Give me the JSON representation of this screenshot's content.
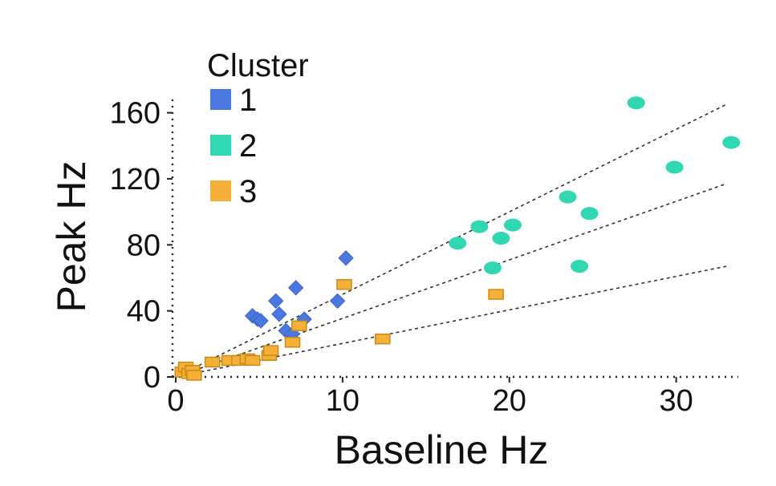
{
  "chart_data": {
    "type": "scatter",
    "xlabel": "Baseline Hz",
    "ylabel": "Peak Hz",
    "xlim": [
      0,
      33
    ],
    "ylim": [
      0,
      170
    ],
    "xticks": [
      "0",
      "10",
      "20",
      "30"
    ],
    "yticks": [
      "0",
      "40",
      "80",
      "120",
      "160"
    ],
    "grid": false,
    "legend": {
      "title": "Cluster",
      "placement": "top-left"
    },
    "series": [
      {
        "name": "1",
        "color": "#4a78e0",
        "marker": "diamond",
        "points": [
          [
            4.6,
            37
          ],
          [
            4.9,
            35
          ],
          [
            5.1,
            34
          ],
          [
            6.0,
            46
          ],
          [
            6.2,
            38
          ],
          [
            6.6,
            28
          ],
          [
            7.0,
            26
          ],
          [
            7.2,
            54
          ],
          [
            7.7,
            35
          ],
          [
            9.7,
            46
          ],
          [
            10.2,
            72
          ]
        ]
      },
      {
        "name": "2",
        "color": "#2fd8b0",
        "marker": "ellipse",
        "points": [
          [
            16.9,
            81
          ],
          [
            18.2,
            91
          ],
          [
            19.0,
            66
          ],
          [
            19.5,
            84
          ],
          [
            20.2,
            92
          ],
          [
            23.5,
            109
          ],
          [
            24.2,
            67
          ],
          [
            24.8,
            99
          ],
          [
            27.6,
            166
          ],
          [
            29.9,
            127
          ],
          [
            33.3,
            142
          ]
        ]
      },
      {
        "name": "3",
        "color": "#f5b03a",
        "marker": "square",
        "points": [
          [
            0.4,
            3
          ],
          [
            0.6,
            6
          ],
          [
            0.8,
            2
          ],
          [
            1.0,
            4
          ],
          [
            1.1,
            1
          ],
          [
            2.2,
            9
          ],
          [
            3.2,
            10
          ],
          [
            3.8,
            10
          ],
          [
            4.3,
            11
          ],
          [
            4.6,
            10
          ],
          [
            5.6,
            13
          ],
          [
            5.7,
            16
          ],
          [
            7.0,
            21
          ],
          [
            7.4,
            31
          ],
          [
            10.1,
            56
          ],
          [
            12.4,
            23
          ],
          [
            19.2,
            50
          ]
        ]
      }
    ],
    "trend_lines": [
      {
        "x": [
          0,
          33
        ],
        "y": [
          0,
          165
        ]
      },
      {
        "x": [
          0,
          33
        ],
        "y": [
          0,
          117
        ]
      },
      {
        "x": [
          0,
          33
        ],
        "y": [
          0,
          67
        ]
      }
    ]
  }
}
